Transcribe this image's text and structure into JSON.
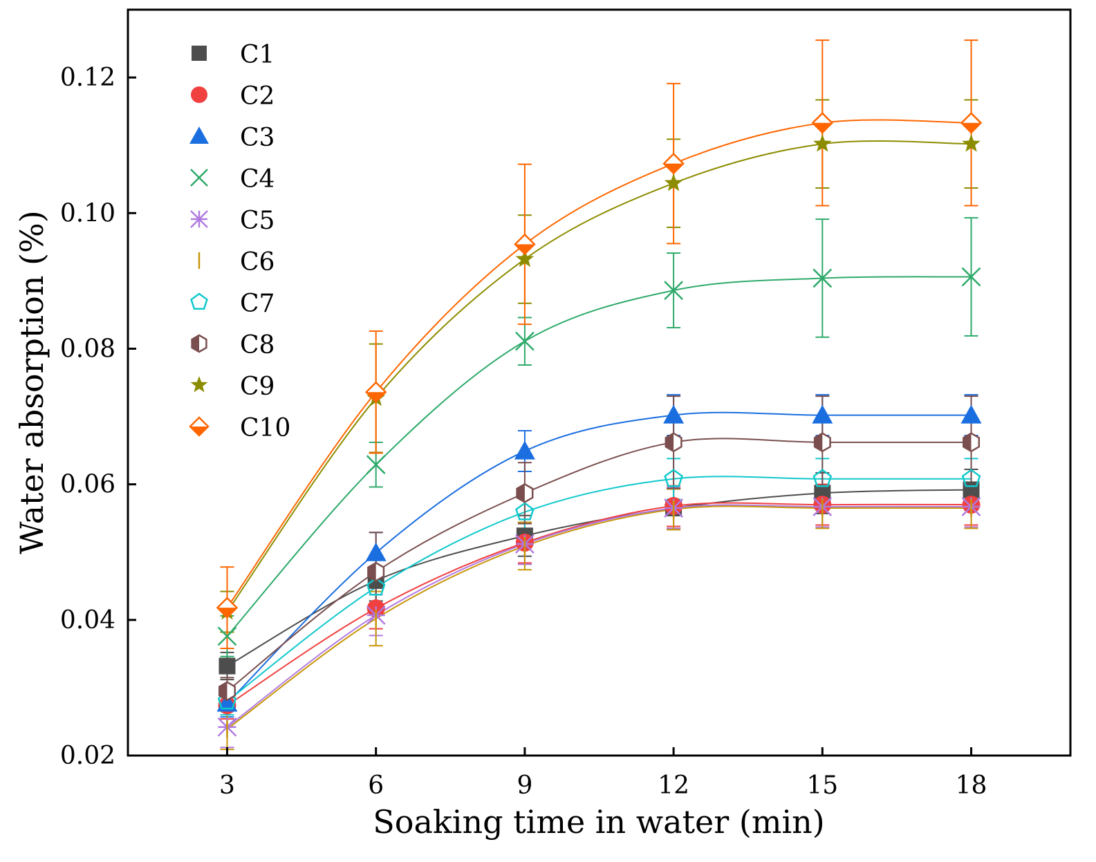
{
  "chart_data": {
    "type": "scatter",
    "title": "",
    "xlabel": "Soaking time in water (min)",
    "ylabel": "Water absorption (%)",
    "xlim": [
      1,
      20
    ],
    "ylim": [
      0.02,
      0.13
    ],
    "xticks": [
      3,
      6,
      9,
      12,
      15,
      18
    ],
    "yticks": [
      0.02,
      0.04,
      0.06,
      0.08,
      0.1,
      0.12
    ],
    "ytick_labels": [
      "0.02",
      "0.04",
      "0.06",
      "0.08",
      "0.10",
      "0.12"
    ],
    "xtick_labels": [
      "3",
      "6",
      "9",
      "12",
      "15",
      "18"
    ],
    "grid": false,
    "legend_position": "top-left",
    "x": [
      3,
      6,
      9,
      12,
      15,
      18
    ],
    "series": [
      {
        "name": "C1",
        "color": "#4d4d4d",
        "marker": "square",
        "values": [
          0.0332,
          0.0458,
          0.0524,
          0.0565,
          0.0587,
          0.0592
        ],
        "error": [
          0.002,
          0.003,
          0.003,
          0.003,
          0.003,
          0.003
        ]
      },
      {
        "name": "C2",
        "color": "#f04040",
        "marker": "circle",
        "values": [
          0.0274,
          0.0417,
          0.0514,
          0.0568,
          0.057,
          0.057
        ],
        "error": [
          0.002,
          0.003,
          0.003,
          0.003,
          0.003,
          0.003
        ]
      },
      {
        "name": "C3",
        "color": "#1a6ee0",
        "marker": "triangle",
        "values": [
          0.0277,
          0.0499,
          0.0649,
          0.0702,
          0.0702,
          0.0702
        ],
        "error": [
          0.002,
          0.003,
          0.003,
          0.003,
          0.003,
          0.003
        ]
      },
      {
        "name": "C4",
        "color": "#2eaa6a",
        "marker": "x",
        "values": [
          0.0376,
          0.0629,
          0.0811,
          0.0886,
          0.0904,
          0.0906
        ],
        "error": [
          0.003,
          0.0033,
          0.0035,
          0.0055,
          0.0087,
          0.0087
        ]
      },
      {
        "name": "C5",
        "color": "#b07ae0",
        "marker": "asterisk",
        "values": [
          0.0242,
          0.0407,
          0.0512,
          0.0565,
          0.0567,
          0.0567
        ],
        "error": [
          0.003,
          0.003,
          0.003,
          0.003,
          0.003,
          0.003
        ]
      },
      {
        "name": "C6",
        "color": "#c8960a",
        "marker": "vline",
        "values": [
          0.0239,
          0.0402,
          0.0509,
          0.0563,
          0.0565,
          0.0565
        ],
        "error": [
          0.003,
          0.004,
          0.0035,
          0.003,
          0.003,
          0.003
        ]
      },
      {
        "name": "C7",
        "color": "#10c8cc",
        "marker": "pentagon",
        "values": [
          0.028,
          0.0448,
          0.0559,
          0.0608,
          0.0608,
          0.0608
        ],
        "error": [
          0.002,
          0.003,
          0.003,
          0.003,
          0.003,
          0.003
        ]
      },
      {
        "name": "C8",
        "color": "#7a4e4e",
        "marker": "hexagon",
        "values": [
          0.0295,
          0.0471,
          0.0587,
          0.0662,
          0.0662,
          0.0662
        ],
        "error": [
          0.002,
          0.0058,
          0.0045,
          0.0068,
          0.0068,
          0.0068
        ]
      },
      {
        "name": "C9",
        "color": "#8c8c00",
        "marker": "star",
        "values": [
          0.0412,
          0.0727,
          0.0932,
          0.1044,
          0.1102,
          0.1102
        ],
        "error": [
          0.003,
          0.008,
          0.0065,
          0.0065,
          0.0065,
          0.0065
        ]
      },
      {
        "name": "C10",
        "color": "#ff6600",
        "marker": "diamond",
        "values": [
          0.0418,
          0.0736,
          0.0954,
          0.1073,
          0.1133,
          0.1133
        ],
        "error": [
          0.006,
          0.009,
          0.0118,
          0.0118,
          0.0122,
          0.0122
        ]
      }
    ]
  }
}
